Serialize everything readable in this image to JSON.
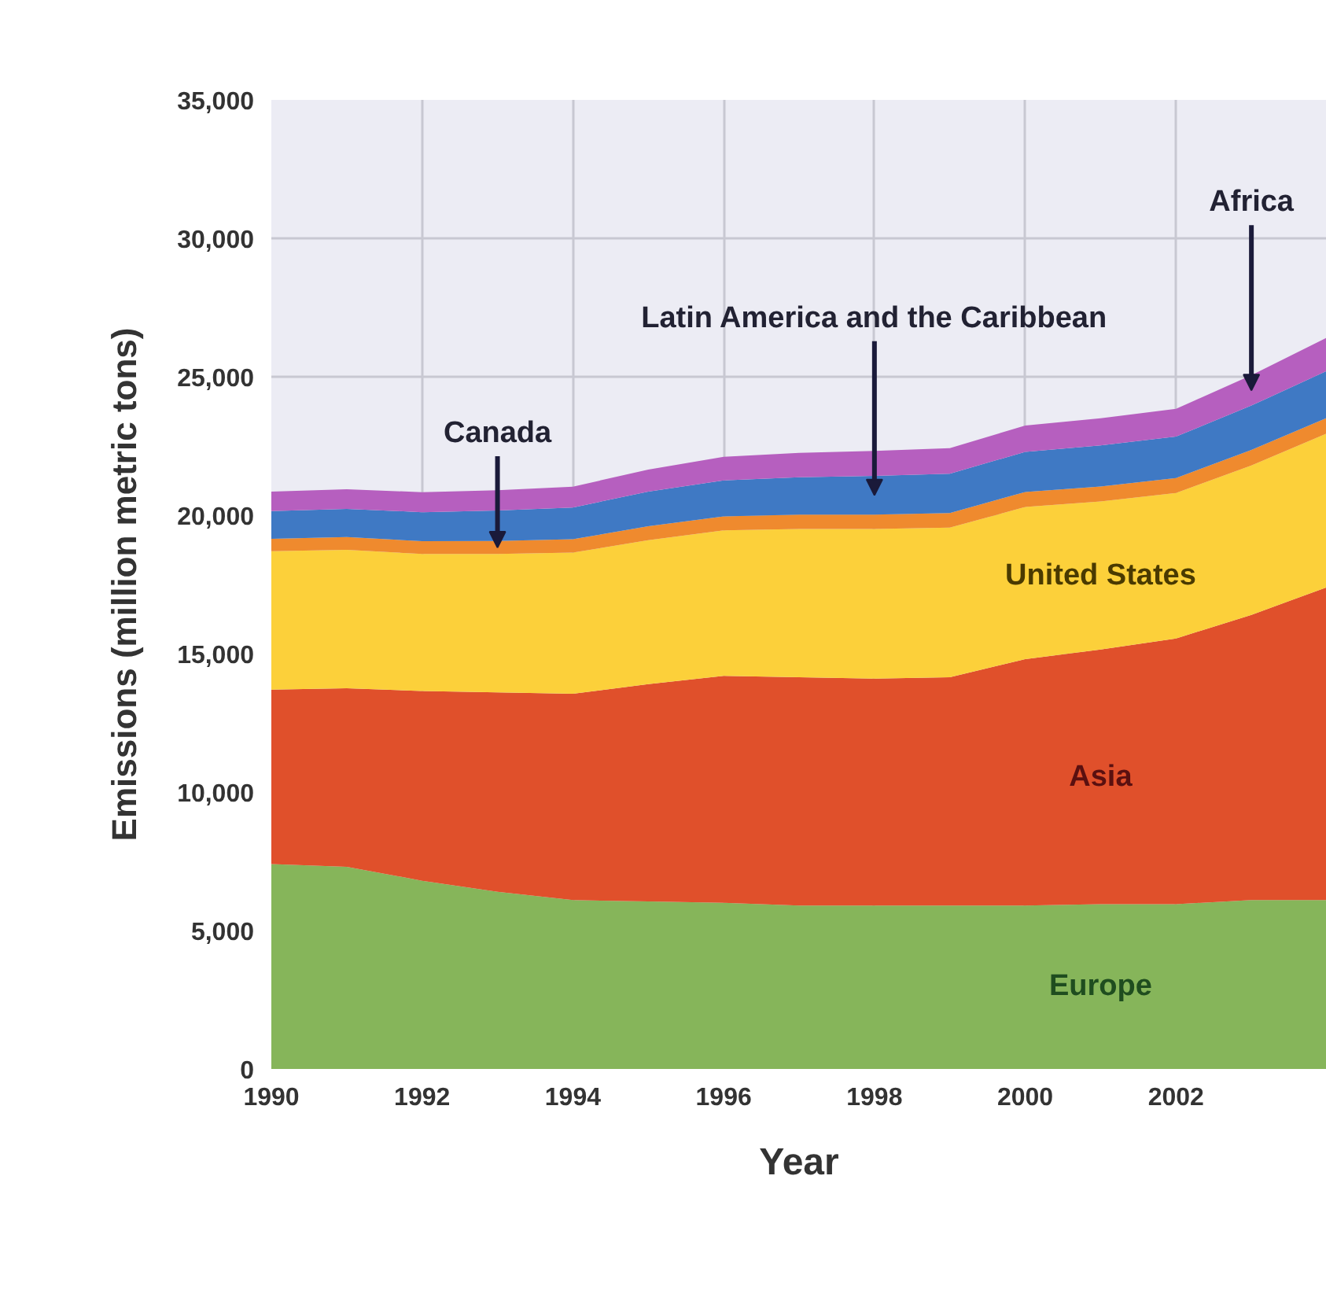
{
  "chart_data": {
    "type": "area",
    "stacked": true,
    "xlabel": "Year",
    "ylabel": "Emissions (million metric tons)",
    "x": [
      1990,
      1991,
      1992,
      1993,
      1994,
      1995,
      1996,
      1997,
      1998,
      1999,
      2000,
      2001,
      2002,
      2003,
      2004
    ],
    "xlim": [
      1990,
      2004
    ],
    "xticks": [
      1990,
      1992,
      1994,
      1996,
      1998,
      2000,
      2002
    ],
    "ylim": [
      0,
      35000
    ],
    "yticks": [
      0,
      {
        "value": 5000,
        "label": "5,000"
      },
      {
        "value": 10000,
        "label": "10,000"
      },
      {
        "value": 15000,
        "label": "15,000"
      },
      {
        "value": 20000,
        "label": "20,000"
      },
      {
        "value": 25000,
        "label": "25,000"
      },
      {
        "value": 30000,
        "label": "30,000"
      },
      {
        "value": 35000,
        "label": "35,000"
      }
    ],
    "grid": true,
    "series": [
      {
        "name": "Europe",
        "color": "#86b55a",
        "values": [
          7400,
          7300,
          6800,
          6400,
          6100,
          6050,
          6000,
          5900,
          5900,
          5900,
          5900,
          5950,
          5950,
          6100,
          6100
        ]
      },
      {
        "name": "Asia",
        "color": "#e0502b",
        "values": [
          6300,
          6450,
          6850,
          7200,
          7450,
          7850,
          8200,
          8250,
          8200,
          8250,
          8900,
          9200,
          9600,
          10300,
          11300
        ]
      },
      {
        "name": "United States",
        "color": "#fcd03a",
        "values": [
          5000,
          5000,
          4950,
          5000,
          5100,
          5200,
          5250,
          5350,
          5400,
          5400,
          5500,
          5350,
          5250,
          5400,
          5550
        ]
      },
      {
        "name": "Canada",
        "color": "#ef8a2e",
        "values": [
          450,
          460,
          460,
          470,
          480,
          500,
          510,
          520,
          520,
          530,
          540,
          540,
          540,
          560,
          560
        ]
      },
      {
        "name": "Latin America and the Caribbean",
        "color": "#3f79c4",
        "values": [
          1000,
          1020,
          1050,
          1100,
          1150,
          1250,
          1300,
          1350,
          1400,
          1420,
          1450,
          1480,
          1500,
          1600,
          1700
        ]
      },
      {
        "name": "Africa",
        "color": "#b65fbf",
        "values": [
          700,
          710,
          720,
          730,
          750,
          800,
          850,
          880,
          900,
          920,
          950,
          980,
          1000,
          1100,
          1200
        ]
      }
    ]
  }
}
